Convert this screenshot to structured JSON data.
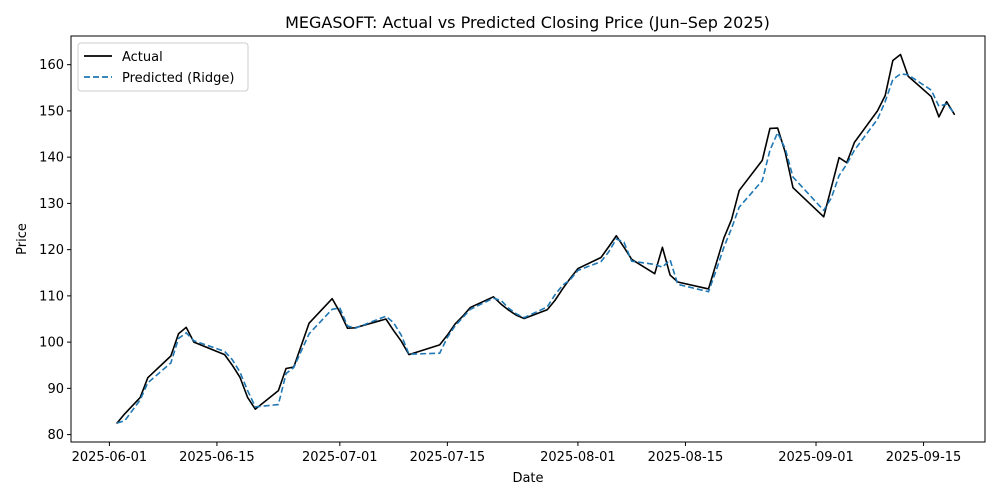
{
  "chart_data": {
    "type": "line",
    "title": "MEGASOFT: Actual vs Predicted Closing Price (Jun–Sep 2025)",
    "xlabel": "Date",
    "ylabel": "Price",
    "xlim": [
      "2025-05-27",
      "2025-09-23"
    ],
    "ylim": [
      78.4,
      166.2
    ],
    "x_ticks": [
      "2025-06-01",
      "2025-06-15",
      "2025-07-01",
      "2025-07-15",
      "2025-08-01",
      "2025-08-15",
      "2025-09-01",
      "2025-09-15"
    ],
    "y_ticks": [
      80,
      90,
      100,
      110,
      120,
      130,
      140,
      150,
      160
    ],
    "grid": false,
    "legend": "top-left",
    "series": [
      {
        "name": "Actual",
        "color": "#000000",
        "style": "solid",
        "points": [
          [
            "2025-06-02",
            82.5
          ],
          [
            "2025-06-03",
            84.5
          ],
          [
            "2025-06-05",
            88.0
          ],
          [
            "2025-06-06",
            92.3
          ],
          [
            "2025-06-09",
            97.0
          ],
          [
            "2025-06-10",
            101.8
          ],
          [
            "2025-06-11",
            103.2
          ],
          [
            "2025-06-12",
            100.0
          ],
          [
            "2025-06-16",
            97.3
          ],
          [
            "2025-06-17",
            95.0
          ],
          [
            "2025-06-18",
            92.4
          ],
          [
            "2025-06-19",
            88.0
          ],
          [
            "2025-06-20",
            85.5
          ],
          [
            "2025-06-23",
            89.5
          ],
          [
            "2025-06-24",
            94.3
          ],
          [
            "2025-06-25",
            94.6
          ],
          [
            "2025-06-27",
            104.1
          ],
          [
            "2025-06-30",
            109.4
          ],
          [
            "2025-07-01",
            106.5
          ],
          [
            "2025-07-02",
            103.0
          ],
          [
            "2025-07-03",
            103.1
          ],
          [
            "2025-07-07",
            105.0
          ],
          [
            "2025-07-08",
            102.5
          ],
          [
            "2025-07-09",
            100.2
          ],
          [
            "2025-07-10",
            97.3
          ],
          [
            "2025-07-14",
            99.4
          ],
          [
            "2025-07-15",
            101.5
          ],
          [
            "2025-07-16",
            103.9
          ],
          [
            "2025-07-17",
            105.6
          ],
          [
            "2025-07-18",
            107.5
          ],
          [
            "2025-07-21",
            109.8
          ],
          [
            "2025-07-22",
            108.2
          ],
          [
            "2025-07-23",
            106.9
          ],
          [
            "2025-07-24",
            105.8
          ],
          [
            "2025-07-25",
            105.1
          ],
          [
            "2025-07-28",
            107.0
          ],
          [
            "2025-07-29",
            109.0
          ],
          [
            "2025-07-30",
            111.5
          ],
          [
            "2025-07-31",
            113.8
          ],
          [
            "2025-08-01",
            115.9
          ],
          [
            "2025-08-04",
            118.3
          ],
          [
            "2025-08-05",
            120.6
          ],
          [
            "2025-08-06",
            123.0
          ],
          [
            "2025-08-07",
            120.5
          ],
          [
            "2025-08-08",
            117.9
          ],
          [
            "2025-08-11",
            114.8
          ],
          [
            "2025-08-12",
            120.5
          ],
          [
            "2025-08-13",
            114.5
          ],
          [
            "2025-08-14",
            113.0
          ],
          [
            "2025-08-18",
            111.5
          ],
          [
            "2025-08-19",
            117.0
          ],
          [
            "2025-08-20",
            122.5
          ],
          [
            "2025-08-21",
            126.5
          ],
          [
            "2025-08-22",
            132.8
          ],
          [
            "2025-08-25",
            139.3
          ],
          [
            "2025-08-26",
            146.2
          ],
          [
            "2025-08-27",
            146.3
          ],
          [
            "2025-08-28",
            141.0
          ],
          [
            "2025-08-29",
            133.4
          ],
          [
            "2025-09-02",
            127.1
          ],
          [
            "2025-09-03",
            133.5
          ],
          [
            "2025-09-04",
            139.9
          ],
          [
            "2025-09-05",
            138.8
          ],
          [
            "2025-09-06",
            143.2
          ],
          [
            "2025-09-09",
            150.0
          ],
          [
            "2025-09-10",
            153.3
          ],
          [
            "2025-09-11",
            160.9
          ],
          [
            "2025-09-12",
            162.2
          ],
          [
            "2025-09-13",
            157.5
          ],
          [
            "2025-09-16",
            153.1
          ],
          [
            "2025-09-17",
            148.7
          ],
          [
            "2025-09-18",
            152.0
          ],
          [
            "2025-09-19",
            149.3
          ]
        ]
      },
      {
        "name": "Predicted (Ridge)",
        "color": "#1f77b4",
        "style": "dashed",
        "points": [
          [
            "2025-06-02",
            82.5
          ],
          [
            "2025-06-03",
            83.0
          ],
          [
            "2025-06-05",
            87.5
          ],
          [
            "2025-06-06",
            91.2
          ],
          [
            "2025-06-09",
            95.5
          ],
          [
            "2025-06-10",
            100.8
          ],
          [
            "2025-06-11",
            102.0
          ],
          [
            "2025-06-12",
            100.3
          ],
          [
            "2025-06-16",
            98.0
          ],
          [
            "2025-06-17",
            96.2
          ],
          [
            "2025-06-18",
            93.5
          ],
          [
            "2025-06-19",
            89.5
          ],
          [
            "2025-06-20",
            86.0
          ],
          [
            "2025-06-23",
            86.5
          ],
          [
            "2025-06-24",
            93.2
          ],
          [
            "2025-06-25",
            94.5
          ],
          [
            "2025-06-27",
            101.8
          ],
          [
            "2025-06-30",
            107.1
          ],
          [
            "2025-07-01",
            107.4
          ],
          [
            "2025-07-02",
            103.5
          ],
          [
            "2025-07-03",
            103.0
          ],
          [
            "2025-07-07",
            105.6
          ],
          [
            "2025-07-08",
            104.2
          ],
          [
            "2025-07-09",
            101.5
          ],
          [
            "2025-07-10",
            97.4
          ],
          [
            "2025-07-14",
            97.6
          ],
          [
            "2025-07-15",
            101.0
          ],
          [
            "2025-07-16",
            103.5
          ],
          [
            "2025-07-17",
            105.3
          ],
          [
            "2025-07-18",
            107.1
          ],
          [
            "2025-07-21",
            109.5
          ],
          [
            "2025-07-22",
            109.0
          ],
          [
            "2025-07-23",
            107.3
          ],
          [
            "2025-07-24",
            106.1
          ],
          [
            "2025-07-25",
            105.3
          ],
          [
            "2025-07-28",
            107.6
          ],
          [
            "2025-07-29",
            110.2
          ],
          [
            "2025-07-30",
            112.3
          ],
          [
            "2025-07-31",
            113.5
          ],
          [
            "2025-08-01",
            115.5
          ],
          [
            "2025-08-04",
            117.4
          ],
          [
            "2025-08-05",
            119.5
          ],
          [
            "2025-08-06",
            122.3
          ],
          [
            "2025-08-07",
            121.6
          ],
          [
            "2025-08-08",
            117.5
          ],
          [
            "2025-08-11",
            116.8
          ],
          [
            "2025-08-12",
            116.2
          ],
          [
            "2025-08-13",
            117.8
          ],
          [
            "2025-08-14",
            112.5
          ],
          [
            "2025-08-18",
            110.9
          ],
          [
            "2025-08-19",
            115.5
          ],
          [
            "2025-08-20",
            120.5
          ],
          [
            "2025-08-21",
            124.6
          ],
          [
            "2025-08-22",
            129.2
          ],
          [
            "2025-08-25",
            134.9
          ],
          [
            "2025-08-26",
            141.5
          ],
          [
            "2025-08-27",
            145.3
          ],
          [
            "2025-08-28",
            141.8
          ],
          [
            "2025-08-29",
            135.7
          ],
          [
            "2025-09-02",
            128.5
          ],
          [
            "2025-09-03",
            131.2
          ],
          [
            "2025-09-04",
            136.0
          ],
          [
            "2025-09-05",
            138.5
          ],
          [
            "2025-09-06",
            141.5
          ],
          [
            "2025-09-09",
            148.2
          ],
          [
            "2025-09-10",
            152.0
          ],
          [
            "2025-09-11",
            156.8
          ],
          [
            "2025-09-12",
            158.0
          ],
          [
            "2025-09-13",
            157.8
          ],
          [
            "2025-09-16",
            154.5
          ],
          [
            "2025-09-17",
            151.0
          ],
          [
            "2025-09-18",
            151.5
          ],
          [
            "2025-09-19",
            149.5
          ]
        ]
      }
    ]
  }
}
